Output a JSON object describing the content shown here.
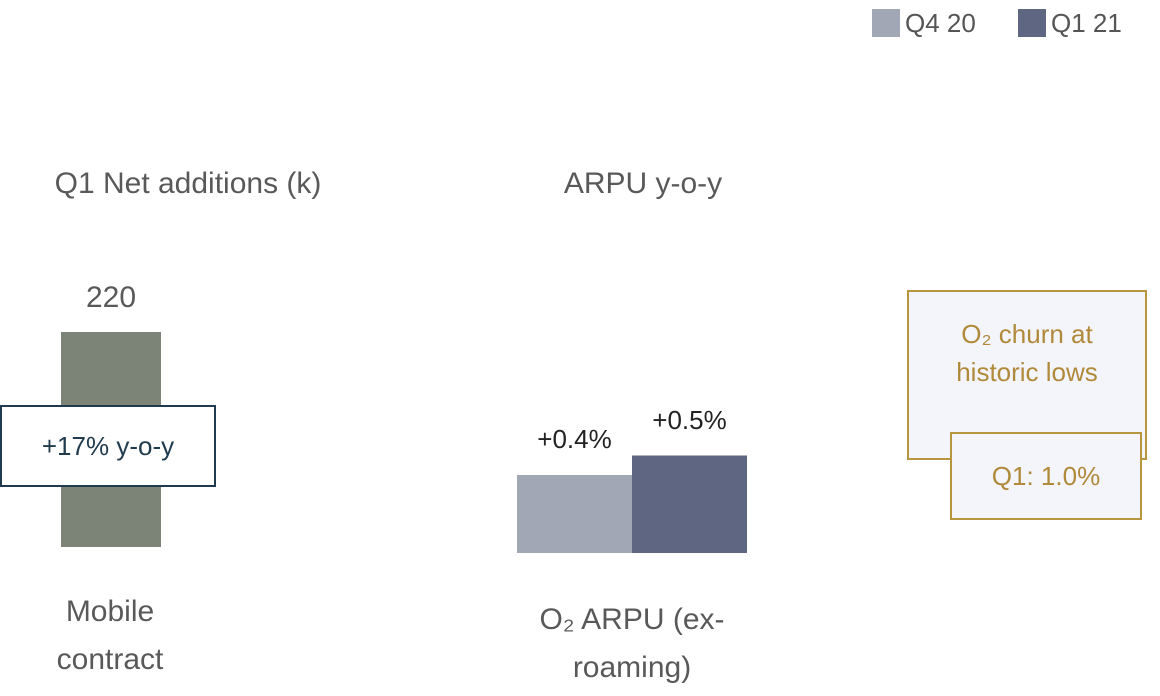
{
  "chart_data": [
    {
      "type": "bar",
      "title": "Q1 Net additions (k)",
      "categories": [
        "Mobile contract"
      ],
      "values": [
        220
      ],
      "color": "#7b8476",
      "annotation": "+17% y-o-y"
    },
    {
      "type": "grouped_bar",
      "title": "ARPU y-o-y",
      "categories": [
        "O₂ ARPU (ex-roaming)"
      ],
      "series": [
        {
          "name": "Q4 20",
          "color": "#a2a7b5",
          "values": [
            0.4
          ],
          "value_labels": [
            "+0.4%"
          ]
        },
        {
          "name": "Q1 21",
          "color": "#5f6682",
          "values": [
            0.5
          ],
          "value_labels": [
            "+0.5%"
          ]
        }
      ],
      "legend": "top-right"
    }
  ],
  "callout": {
    "text": "O₂ churn at historic lows",
    "detail": "Q1: 1.0%"
  }
}
